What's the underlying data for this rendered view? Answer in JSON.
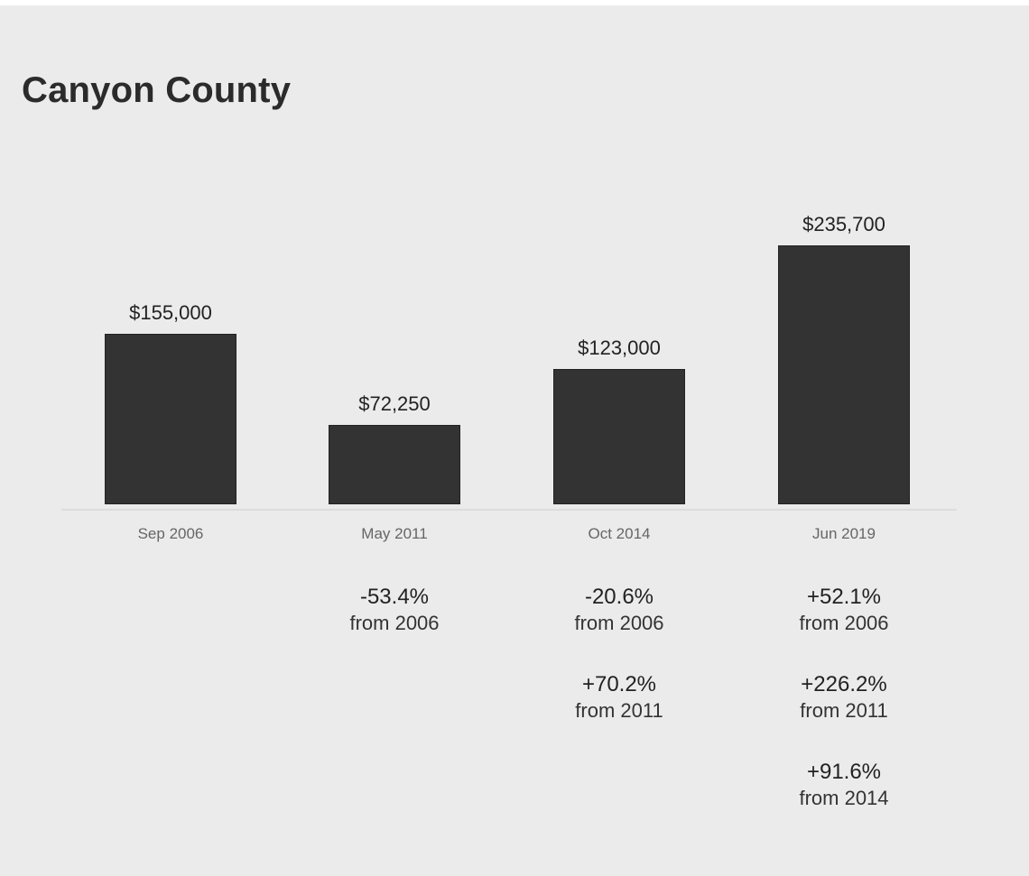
{
  "title": "Canyon County",
  "chart_data": {
    "type": "bar",
    "title": "Canyon County",
    "categories": [
      "Sep 2006",
      "May 2011",
      "Oct 2014",
      "Jun 2019"
    ],
    "values": [
      155000,
      72250,
      123000,
      235700
    ],
    "value_labels": [
      "$155,000",
      "$72,250",
      "$123,000",
      "$235,700"
    ],
    "xlabel": "",
    "ylabel": "",
    "grid": false,
    "bar_color": "#333333",
    "changes": [
      [],
      [
        {
          "pct": "-53.4%",
          "from": "from 2006"
        }
      ],
      [
        {
          "pct": "-20.6%",
          "from": "from 2006"
        },
        {
          "pct": "+70.2%",
          "from": "from 2011"
        }
      ],
      [
        {
          "pct": "+52.1%",
          "from": "from 2006"
        },
        {
          "pct": "+226.2%",
          "from": "from 2011"
        },
        {
          "pct": "+91.6%",
          "from": "from 2014"
        }
      ]
    ]
  }
}
